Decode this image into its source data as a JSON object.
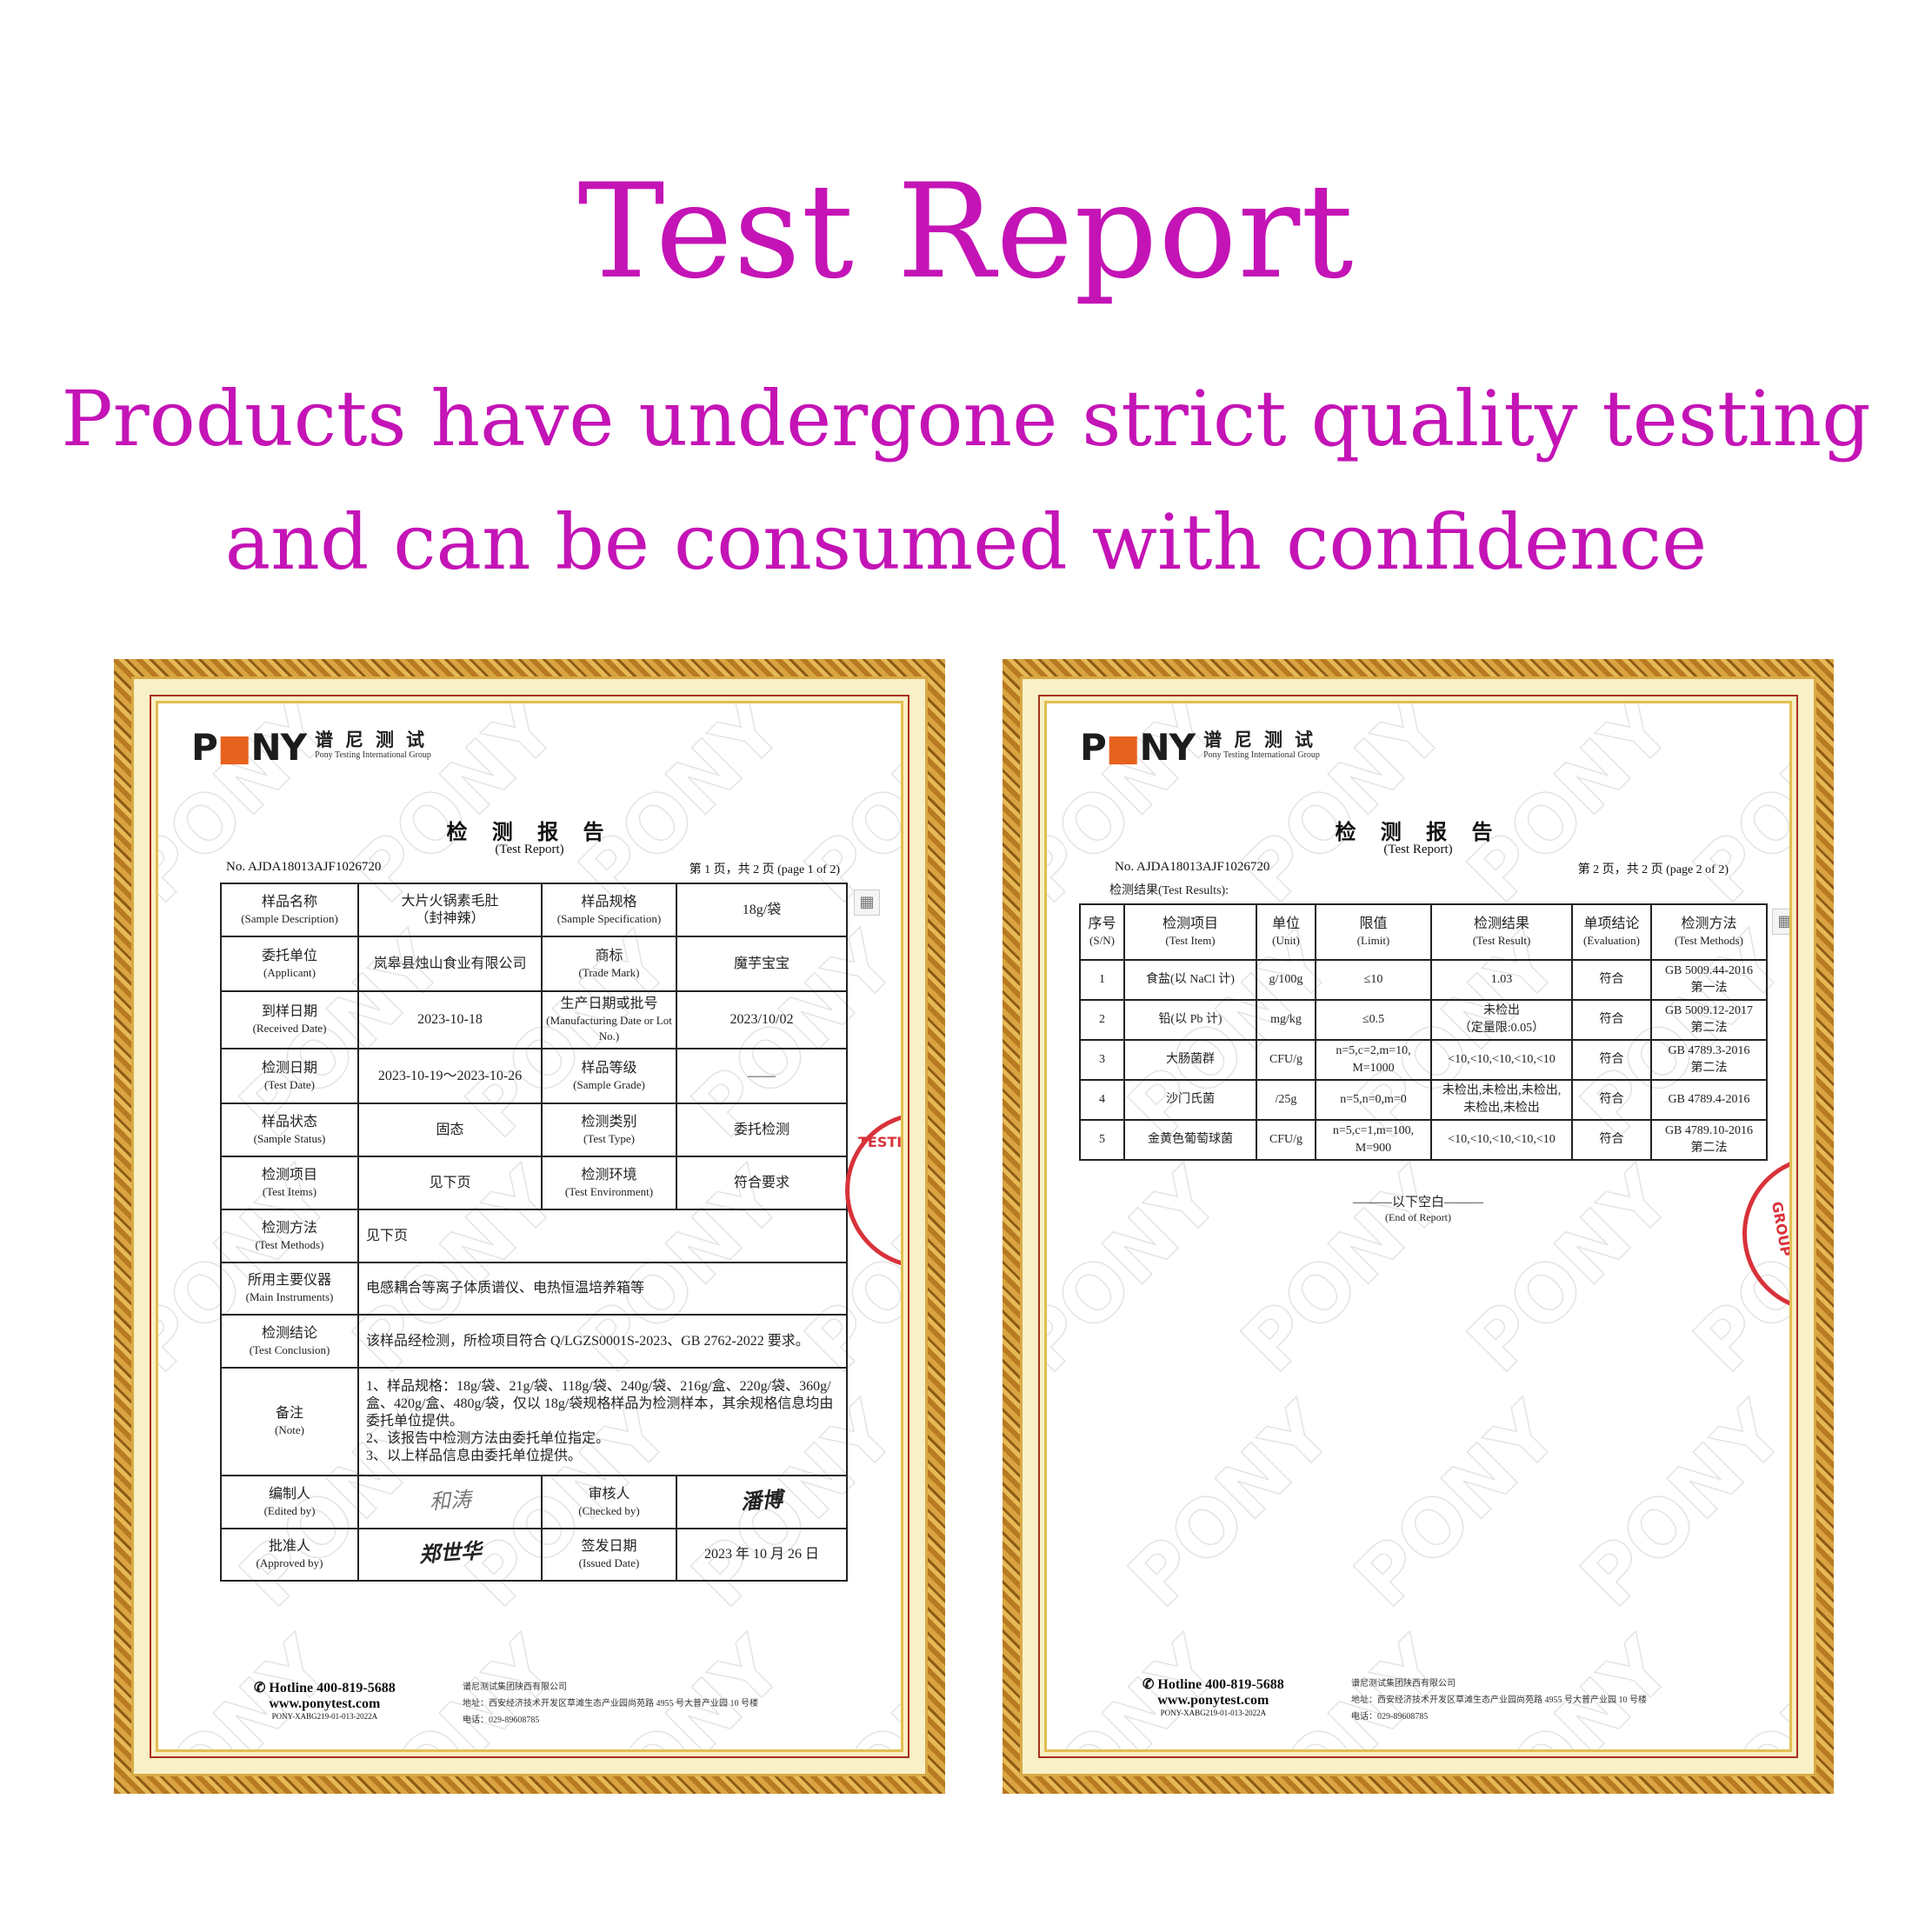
{
  "headline": {
    "title": "Test Report",
    "subtitle_line1": "Products have undergone strict quality testing",
    "subtitle_line2": "and can be consumed with confidence"
  },
  "colors": {
    "headline": "#c414b6",
    "frame_gold": "#c8902e",
    "mat": "#f8f0c6",
    "stamp": "#d8323a",
    "logo_accent": "#e6621e"
  },
  "logo": {
    "mark": "PONY",
    "cn": "谱尼测试",
    "en": "Pony Testing International Group"
  },
  "watermark": "PONY",
  "page1": {
    "title_cn": "检 测 报 告",
    "title_en": "(Test Report)",
    "report_no": "No. AJDA18013AJF1026720",
    "page_info": "第 1 页，共 2 页 (page 1 of 2)",
    "rows": [
      {
        "type": "quad",
        "l1": {
          "cn": "样品名称",
          "en": "(Sample Description)"
        },
        "v1": "大片火锅素毛肚\n（封神辣）",
        "l2": {
          "cn": "样品规格",
          "en": "(Sample Specification)"
        },
        "v2": "18g/袋"
      },
      {
        "type": "quad",
        "l1": {
          "cn": "委托单位",
          "en": "(Applicant)"
        },
        "v1": "岚皋县烛山食业有限公司",
        "l2": {
          "cn": "商标",
          "en": "(Trade Mark)"
        },
        "v2": "魔芋宝宝"
      },
      {
        "type": "quad",
        "l1": {
          "cn": "到样日期",
          "en": "(Received Date)"
        },
        "v1": "2023-10-18",
        "l2": {
          "cn": "生产日期或批号",
          "en": "(Manufacturing Date or Lot No.)"
        },
        "v2": "2023/10/02"
      },
      {
        "type": "quad",
        "l1": {
          "cn": "检测日期",
          "en": "(Test Date)"
        },
        "v1": "2023-10-19～2023-10-26",
        "l2": {
          "cn": "样品等级",
          "en": "(Sample Grade)"
        },
        "v2": "——"
      },
      {
        "type": "quad",
        "l1": {
          "cn": "样品状态",
          "en": "(Sample Status)"
        },
        "v1": "固态",
        "l2": {
          "cn": "检测类别",
          "en": "(Test Type)"
        },
        "v2": "委托检测"
      },
      {
        "type": "quad",
        "l1": {
          "cn": "检测项目",
          "en": "(Test Items)"
        },
        "v1": "见下页",
        "l2": {
          "cn": "检测环境",
          "en": "(Test Environment)"
        },
        "v2": "符合要求"
      },
      {
        "type": "wide",
        "l1": {
          "cn": "检测方法",
          "en": "(Test Methods)"
        },
        "v1": "见下页"
      },
      {
        "type": "wide",
        "l1": {
          "cn": "所用主要仪器",
          "en": "(Main Instruments)"
        },
        "v1": "电感耦合等离子体质谱仪、电热恒温培养箱等"
      },
      {
        "type": "wide",
        "l1": {
          "cn": "检测结论",
          "en": "(Test Conclusion)"
        },
        "v1": "该样品经检测，所检项目符合 Q/LGZS0001S-2023、GB 2762-2022 要求。"
      },
      {
        "type": "wide",
        "l1": {
          "cn": "备注",
          "en": "(Note)"
        },
        "v1": "1、样品规格：18g/袋、21g/袋、118g/袋、240g/袋、216g/盒、220g/袋、360g/盒、420g/盒、480g/袋，仅以 18g/袋规格样品为检测样本，其余规格信息均由委托单位提供。\n2、该报告中检测方法由委托单位指定。\n3、以上样品信息由委托单位提供。"
      },
      {
        "type": "sign",
        "l1": {
          "cn": "编制人",
          "en": "(Edited by)"
        },
        "v1": "",
        "l2": {
          "cn": "审核人",
          "en": "(Checked by)"
        },
        "v2": ""
      },
      {
        "type": "quad",
        "l1": {
          "cn": "批准人",
          "en": "(Approved by)"
        },
        "v1": "",
        "l2": {
          "cn": "签发日期",
          "en": "(Issued Date)"
        },
        "v2": "2023 年 10 月 26 日",
        "sig": true
      }
    ],
    "signatures": {
      "edited": "和涛",
      "checked": "潘博",
      "approved": "郑世华"
    },
    "stamp_text": "TESTING NY"
  },
  "page2": {
    "title_cn": "检 测 报 告",
    "title_en": "(Test Report)",
    "report_no": "No. AJDA18013AJF1026720",
    "page_info": "第 2 页，共 2 页 (page 2 of 2)",
    "results_label": "检测结果(Test Results):",
    "headers": [
      {
        "cn": "序号",
        "en": "(S/N)"
      },
      {
        "cn": "检测项目",
        "en": "(Test Item)"
      },
      {
        "cn": "单位",
        "en": "(Unit)"
      },
      {
        "cn": "限值",
        "en": "(Limit)"
      },
      {
        "cn": "检测结果",
        "en": "(Test Result)"
      },
      {
        "cn": "单项结论",
        "en": "(Evaluation)"
      },
      {
        "cn": "检测方法",
        "en": "(Test Methods)"
      }
    ],
    "rows": [
      [
        "1",
        "食盐(以 NaCl 计)",
        "g/100g",
        "≤10",
        "1.03",
        "符合",
        "GB 5009.44-2016\n第一法"
      ],
      [
        "2",
        "铅(以 Pb 计)",
        "mg/kg",
        "≤0.5",
        "未检出\n（定量限:0.05）",
        "符合",
        "GB 5009.12-2017\n第二法"
      ],
      [
        "3",
        "大肠菌群",
        "CFU/g",
        "n=5,c=2,m=10,\nM=1000",
        "<10,<10,<10,<10,<10",
        "符合",
        "GB 4789.3-2016\n第二法"
      ],
      [
        "4",
        "沙门氏菌",
        "/25g",
        "n=5,n=0,m=0",
        "未检出,未检出,未检出,\n未检出,未检出",
        "符合",
        "GB 4789.4-2016"
      ],
      [
        "5",
        "金黄色葡萄球菌",
        "CFU/g",
        "n=5,c=1,m=100,\nM=900",
        "<10,<10,<10,<10,<10",
        "符合",
        "GB 4789.10-2016\n第二法"
      ]
    ],
    "end_cn": "———以下空白———",
    "end_en": "(End of Report)",
    "stamp_text": "GROUP"
  },
  "footer": {
    "hotline": "✆ Hotline 400-819-5688",
    "website": "www.ponytest.com",
    "code": "PONY-XABG219-01-013-2022A",
    "company": "谱尼测试集团陕西有限公司",
    "address": "地址：西安经济技术开发区草滩生态产业园尚苑路 4955 号大普产业园 10 号楼",
    "phone": "电话：029-89608785"
  }
}
